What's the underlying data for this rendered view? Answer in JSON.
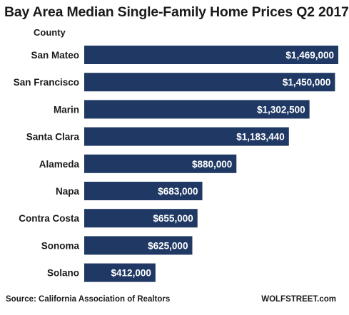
{
  "chart_data": {
    "type": "bar",
    "orientation": "horizontal",
    "title": "Bay Area Median Single-Family Home Prices  Q2 2017",
    "category_axis_label": "County",
    "categories": [
      "San Mateo",
      "San Francisco",
      "Marin",
      "Santa Clara",
      "Alameda",
      "Napa",
      "Contra Costa",
      "Sonoma",
      "Solano"
    ],
    "values": [
      1469000,
      1450000,
      1302500,
      1183440,
      880000,
      683000,
      655000,
      625000,
      412000
    ],
    "value_labels": [
      "$1,469,000",
      "$1,450,000",
      "$1,302,500",
      "$1,183,440",
      "$880,000",
      "$683,000",
      "$655,000",
      "$625,000",
      "$412,000"
    ],
    "xlim": [
      0,
      1469000
    ],
    "bar_color": "#1f3864",
    "label_color": "#ffffff",
    "grid": false,
    "legend": "none"
  },
  "footer": {
    "source": "Source: California Association of Realtors",
    "credit": "WOLFSTREET.com"
  }
}
